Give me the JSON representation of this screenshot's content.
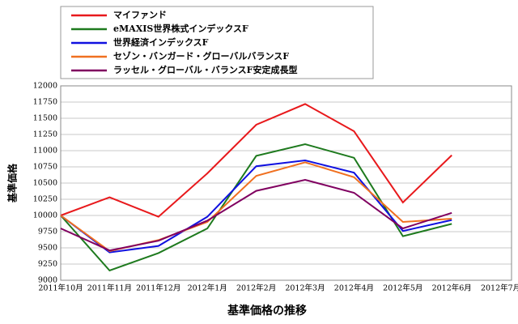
{
  "chart_data": {
    "type": "line",
    "title": "基準価格の推移",
    "y_label": "基準価格",
    "categories": [
      "2011年10月",
      "2011年11月",
      "2011年12月",
      "2012年1月",
      "2012年2月",
      "2012年3月",
      "2012年4月",
      "2012年5月",
      "2012年6月",
      "2012年7月"
    ],
    "series": [
      {
        "name": "マイファンド",
        "color": "#e8191c",
        "values": [
          10000,
          10280,
          9980,
          10650,
          11400,
          11720,
          11300,
          10200,
          10930,
          null
        ]
      },
      {
        "name": "eMAXIS世界株式インデックスF",
        "color": "#1e7a1e",
        "values": [
          10000,
          9150,
          9420,
          9800,
          10920,
          11100,
          10890,
          9680,
          9870,
          null
        ]
      },
      {
        "name": "世界経済インデックスF",
        "color": "#1010e0",
        "values": [
          10000,
          9430,
          9530,
          9980,
          10760,
          10850,
          10660,
          9760,
          9930,
          null
        ]
      },
      {
        "name": "セゾン・バンガード・グローバルバランスF",
        "color": "#f07020",
        "values": [
          10000,
          9450,
          9620,
          9900,
          10610,
          10820,
          10590,
          9900,
          9950,
          null
        ]
      },
      {
        "name": "ラッセル・グローバル・バランスF安定成長型",
        "color": "#800060",
        "values": [
          9800,
          9460,
          9610,
          9920,
          10380,
          10550,
          10350,
          9800,
          10040,
          null
        ]
      }
    ],
    "ylim": [
      9000,
      12000
    ],
    "yticks": [
      9000,
      9250,
      9500,
      9750,
      10000,
      10250,
      10500,
      10750,
      11000,
      11250,
      11500,
      11750,
      12000
    ],
    "grid": true
  }
}
